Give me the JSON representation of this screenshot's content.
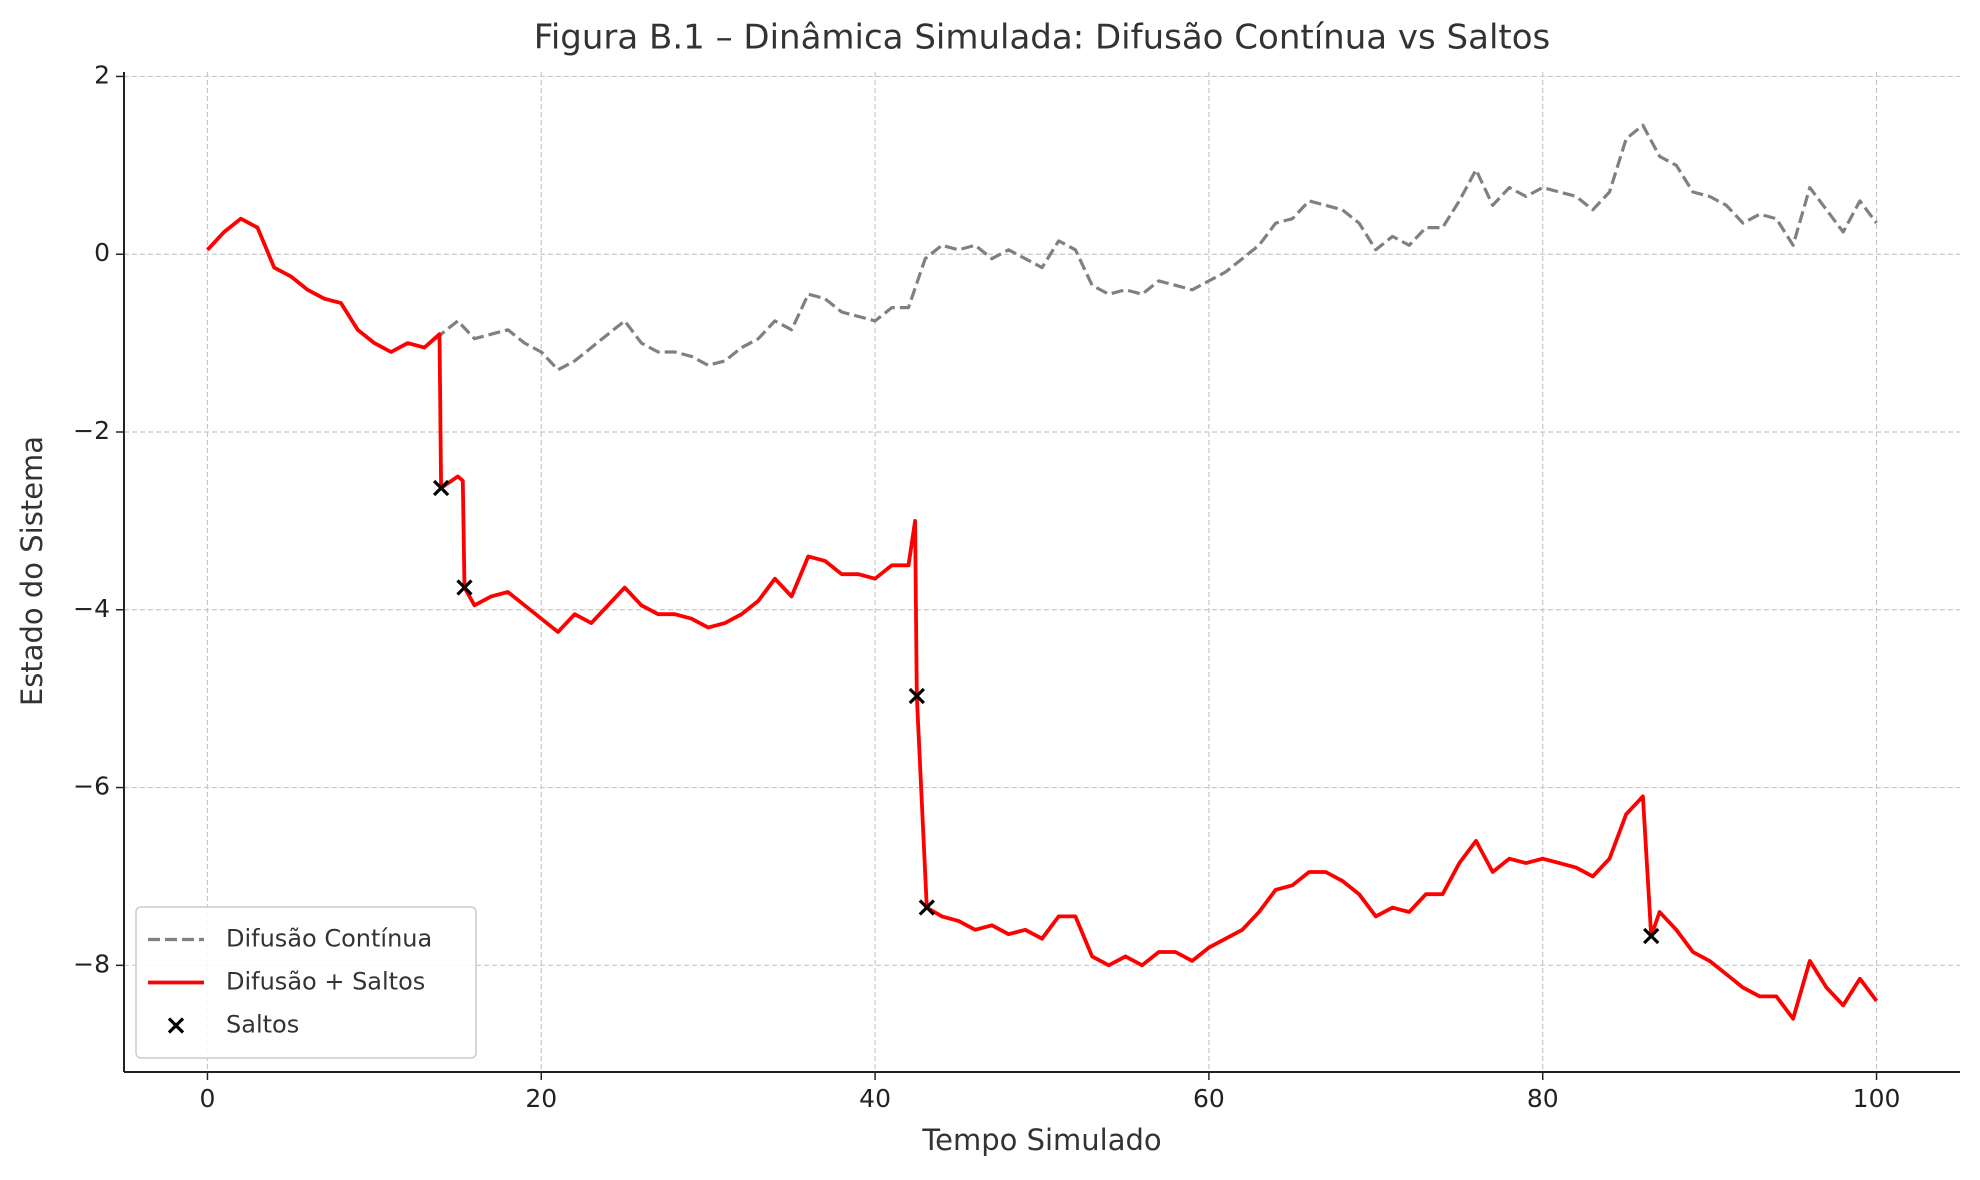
{
  "chart_data": {
    "type": "line",
    "title": "Figura B.1 – Dinâmica Simulada: Difusão Contínua vs Saltos",
    "x_label": "Tempo Simulado",
    "y_label": "Estado do Sistema",
    "xlim": [
      -5,
      105
    ],
    "ylim": [
      -9.2,
      2.05
    ],
    "xticks": [
      0,
      20,
      40,
      60,
      80,
      100
    ],
    "yticks": [
      {
        "value": -8,
        "label": "−8"
      },
      {
        "value": -6,
        "label": "−6"
      },
      {
        "value": -4,
        "label": "−4"
      },
      {
        "value": -2,
        "label": "−2"
      },
      0,
      2
    ],
    "grid": true,
    "legend": "lower left",
    "series": [
      {
        "name": "Difusão Contínua",
        "type": "line",
        "color": "#808080",
        "linestyle": "dashed",
        "x": [
          0,
          1,
          2,
          3,
          4,
          5,
          6,
          7,
          8,
          9,
          10,
          11,
          12,
          13,
          14,
          15,
          16,
          17,
          18,
          19,
          20,
          21,
          22,
          23,
          24,
          25,
          26,
          27,
          28,
          29,
          30,
          31,
          32,
          33,
          34,
          35,
          36,
          37,
          38,
          39,
          40,
          41,
          42,
          43,
          44,
          45,
          46,
          47,
          48,
          49,
          50,
          51,
          52,
          53,
          54,
          55,
          56,
          57,
          58,
          59,
          60,
          61,
          62,
          63,
          64,
          65,
          66,
          67,
          68,
          69,
          70,
          71,
          72,
          73,
          74,
          75,
          76,
          77,
          78,
          79,
          80,
          81,
          82,
          83,
          84,
          85,
          86,
          87,
          88,
          89,
          90,
          91,
          92,
          93,
          94,
          95,
          96,
          97,
          98,
          99,
          100
        ],
        "values": [
          0.05,
          0.25,
          0.4,
          0.3,
          -0.15,
          -0.25,
          -0.4,
          -0.5,
          -0.55,
          -0.85,
          -1.0,
          -1.1,
          -1.0,
          -1.05,
          -0.9,
          -0.75,
          -0.95,
          -0.9,
          -0.85,
          -1.0,
          -1.1,
          -1.3,
          -1.2,
          -1.05,
          -0.9,
          -0.75,
          -1.0,
          -1.1,
          -1.1,
          -1.15,
          -1.25,
          -1.2,
          -1.05,
          -0.95,
          -0.75,
          -0.85,
          -0.45,
          -0.5,
          -0.65,
          -0.7,
          -0.75,
          -0.6,
          -0.6,
          -0.05,
          0.1,
          0.05,
          0.1,
          -0.05,
          0.05,
          -0.05,
          -0.15,
          0.15,
          0.05,
          -0.35,
          -0.45,
          -0.4,
          -0.45,
          -0.3,
          -0.35,
          -0.4,
          -0.3,
          -0.2,
          -0.05,
          0.1,
          0.35,
          0.4,
          0.6,
          0.55,
          0.5,
          0.35,
          0.05,
          0.2,
          0.1,
          0.3,
          0.3,
          0.6,
          0.95,
          0.55,
          0.75,
          0.65,
          0.75,
          0.7,
          0.65,
          0.5,
          0.7,
          1.3,
          1.45,
          1.1,
          1.0,
          0.7,
          0.65,
          0.55,
          0.35,
          0.45,
          0.4,
          0.1,
          0.75,
          0.5,
          0.25,
          0.6,
          0.35
        ]
      },
      {
        "name": "Difusão + Saltos",
        "type": "line",
        "color": "#ff0000",
        "linestyle": "solid",
        "x": [
          0,
          1,
          2,
          3,
          4,
          5,
          6,
          7,
          8,
          9,
          10,
          11,
          12,
          13,
          13.9,
          14,
          15,
          15.3,
          15.4,
          16,
          17,
          18,
          19,
          20,
          21,
          22,
          23,
          24,
          25,
          26,
          27,
          28,
          29,
          30,
          31,
          32,
          33,
          34,
          35,
          36,
          37,
          38,
          39,
          40,
          41,
          42,
          42.4,
          42.5,
          43.1,
          44,
          45,
          46,
          47,
          48,
          49,
          50,
          51,
          52,
          53,
          54,
          55,
          56,
          57,
          58,
          59,
          60,
          61,
          62,
          63,
          64,
          65,
          66,
          67,
          68,
          69,
          70,
          71,
          72,
          73,
          74,
          75,
          76,
          77,
          78,
          79,
          80,
          81,
          82,
          83,
          84,
          85,
          86,
          86.5,
          87,
          88,
          89,
          90,
          91,
          92,
          93,
          94,
          95,
          96,
          97,
          98,
          99,
          100
        ],
        "values": [
          0.05,
          0.25,
          0.4,
          0.3,
          -0.15,
          -0.25,
          -0.4,
          -0.5,
          -0.55,
          -0.85,
          -1.0,
          -1.1,
          -1.0,
          -1.05,
          -0.9,
          -2.63,
          -2.5,
          -2.55,
          -3.75,
          -3.95,
          -3.85,
          -3.8,
          -3.95,
          -4.1,
          -4.25,
          -4.05,
          -4.15,
          -3.95,
          -3.75,
          -3.95,
          -4.05,
          -4.05,
          -4.1,
          -4.2,
          -4.15,
          -4.05,
          -3.9,
          -3.65,
          -3.85,
          -3.4,
          -3.45,
          -3.6,
          -3.6,
          -3.65,
          -3.5,
          -3.5,
          -3.0,
          -4.97,
          -7.35,
          -7.45,
          -7.5,
          -7.6,
          -7.55,
          -7.65,
          -7.6,
          -7.7,
          -7.45,
          -7.45,
          -7.9,
          -8.0,
          -7.9,
          -8.0,
          -7.85,
          -7.85,
          -7.95,
          -7.8,
          -7.7,
          -7.6,
          -7.4,
          -7.15,
          -7.1,
          -6.95,
          -6.95,
          -7.05,
          -7.2,
          -7.45,
          -7.35,
          -7.4,
          -7.2,
          -7.2,
          -6.85,
          -6.6,
          -6.95,
          -6.8,
          -6.85,
          -6.8,
          -6.85,
          -6.9,
          -7.0,
          -6.8,
          -6.3,
          -6.1,
          -7.67,
          -7.4,
          -7.6,
          -7.85,
          -7.95,
          -8.1,
          -8.25,
          -8.35,
          -8.35,
          -8.6,
          -7.95,
          -8.25,
          -8.45,
          -8.15,
          -8.4
        ]
      },
      {
        "name": "Saltos",
        "type": "scatter",
        "color": "#000000",
        "marker": "x",
        "x": [
          14,
          15.4,
          42.5,
          43.1,
          86.5
        ],
        "values": [
          -2.63,
          -3.75,
          -4.97,
          -7.35,
          -7.67
        ]
      }
    ]
  }
}
